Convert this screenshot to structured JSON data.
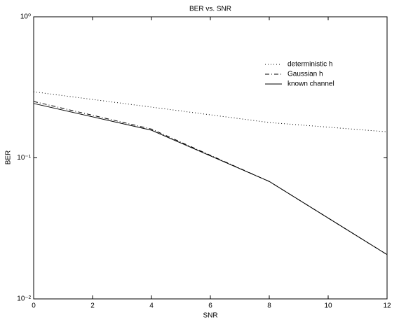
{
  "chart_data": {
    "type": "line",
    "title": "BER vs. SNR",
    "x_label": "SNR",
    "y_label": "BER",
    "x": [
      0,
      4,
      8,
      12
    ],
    "series": [
      {
        "name": "deterministic h",
        "color": "#000000",
        "style": "dotted",
        "values": [
          0.294,
          0.229,
          0.178,
          0.153
        ]
      },
      {
        "name": "Gaussian h",
        "color": "#000000",
        "style": "dashdot",
        "values": [
          0.251,
          0.16,
          0.068,
          0.0206
        ]
      },
      {
        "name": "known channel",
        "color": "#000000",
        "style": "solid",
        "values": [
          0.243,
          0.157,
          0.068,
          0.0206
        ]
      }
    ],
    "xlim": [
      0,
      12
    ],
    "xticks": [
      0,
      2,
      4,
      6,
      8,
      10,
      12
    ],
    "ylim": [
      0.01,
      1
    ],
    "y_log": true,
    "yticks": [
      {
        "value": 0.01,
        "label": "10⁻²"
      },
      {
        "value": 0.1,
        "label": "10⁻¹"
      },
      {
        "value": 1,
        "label": "10⁰"
      }
    ],
    "grid": false,
    "legend": "upper right"
  }
}
